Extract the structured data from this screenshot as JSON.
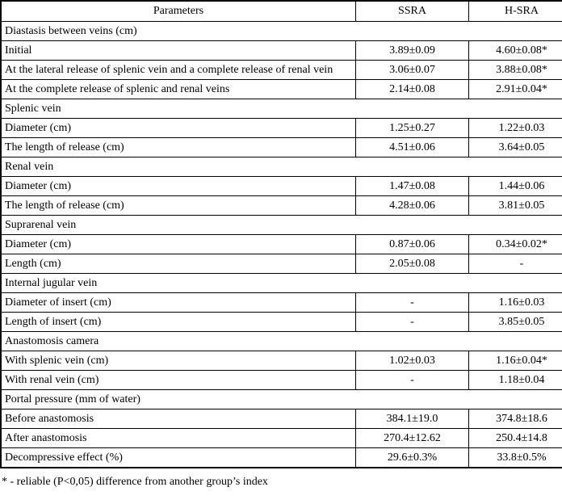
{
  "table": {
    "columns": {
      "parameters": "Parameters",
      "ssra": "SSRA",
      "hsra": "H-SRA"
    },
    "rows": [
      {
        "type": "section",
        "label": "Diastasis between veins (cm)"
      },
      {
        "type": "data",
        "label": "Initial",
        "ssra": "3.89±0.09",
        "hsra": "4.60±0.08*"
      },
      {
        "type": "data",
        "label": "At the lateral release of splenic vein and a complete release of renal vein",
        "ssra": "3.06±0.07",
        "hsra": "3.88±0.08*"
      },
      {
        "type": "data",
        "label": "At the complete release of splenic and renal veins",
        "ssra": "2.14±0.08",
        "hsra": "2.91±0.04*"
      },
      {
        "type": "section",
        "label": "Splenic vein"
      },
      {
        "type": "data",
        "label": "Diameter (cm)",
        "ssra": "1.25±0.27",
        "hsra": "1.22±0.03"
      },
      {
        "type": "data",
        "label": "The length of release (cm)",
        "ssra": "4.51±0.06",
        "hsra": "3.64±0.05"
      },
      {
        "type": "section",
        "label": "Renal vein"
      },
      {
        "type": "data",
        "label": "Diameter (cm)",
        "ssra": "1.47±0.08",
        "hsra": "1.44±0.06"
      },
      {
        "type": "data",
        "label": "The length of release (cm)",
        "ssra": "4.28±0.06",
        "hsra": "3.81±0.05"
      },
      {
        "type": "section",
        "label": "Suprarenal vein"
      },
      {
        "type": "data",
        "label": "Diameter (cm)",
        "ssra": "0.87±0.06",
        "hsra": "0.34±0.02*"
      },
      {
        "type": "data",
        "label": "Length (cm)",
        "ssra": "2.05±0.08",
        "hsra": "-"
      },
      {
        "type": "section",
        "label": "Internal jugular vein"
      },
      {
        "type": "data",
        "label": "Diameter of insert (cm)",
        "ssra": "-",
        "hsra": "1.16±0.03"
      },
      {
        "type": "data",
        "label": "Length of insert (cm)",
        "ssra": "-",
        "hsra": "3.85±0.05"
      },
      {
        "type": "section",
        "label": "Anastomosis camera"
      },
      {
        "type": "data",
        "label": "With splenic vein (cm)",
        "ssra": "1.02±0.03",
        "hsra": "1.16±0.04*"
      },
      {
        "type": "data",
        "label": "With renal vein (cm)",
        "ssra": "-",
        "hsra": "1.18±0.04"
      },
      {
        "type": "section",
        "label": "Portal pressure (mm of water)"
      },
      {
        "type": "data",
        "label": "Before anastomosis",
        "ssra": "384.1±19.0",
        "hsra": "374.8±18.6"
      },
      {
        "type": "data",
        "label": "After anastomosis",
        "ssra": "270.4±12.62",
        "hsra": "250.4±14.8"
      },
      {
        "type": "data",
        "label": "Decompressive effect (%)",
        "ssra": "29.6±0.3%",
        "hsra": "33.8±0.5%"
      }
    ]
  },
  "footnote": "* - reliable (P<0,05) difference from another group’s index"
}
